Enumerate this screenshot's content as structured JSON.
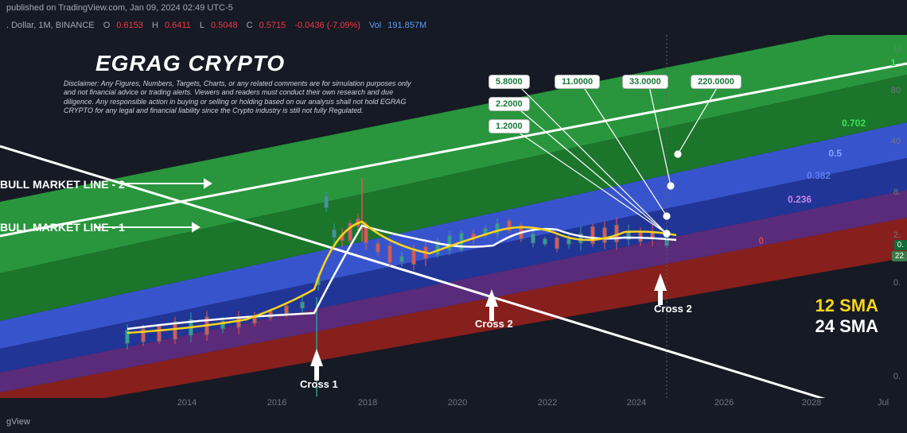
{
  "header": {
    "publish_info": "published on TradingView.com, Jan 09, 2024 02:49 UTC-5",
    "ticker_line_prefix": ". Dollar, 1M, BINANCE",
    "O": "0.6153",
    "H": "0.6411",
    "L": "0.5048",
    "C": "0.5715",
    "change": "-0.0436 (-7.09%)",
    "vol_label": "Vol",
    "vol": "191.857M",
    "bottom": "gView"
  },
  "title": "EGRAG CRYPTO",
  "disclaimer": "Disclaimer: Any Figures, Numbers, Targets, Charts, or any related comments are for simulation purposes only and not financial advice or trading alerts. Viewers and readers must conduct their own research and due diligence. Any responsible action in buying or selling or holding based on our analysis shall not hold EGRAG CRYPTO for any legal and financial liability since the Crypto industry is still not fully Regulated.",
  "line_labels": {
    "bml2": "BULL MARKET LINE - 2",
    "bml1": "BULL MARKET LINE - 1"
  },
  "price_boxes": [
    "5.8000",
    "2.2000",
    "1.2000",
    "11.0000",
    "33.0000",
    "220.0000"
  ],
  "crosses": [
    "Cross 1",
    "Cross 2",
    "Cross 2"
  ],
  "sma": {
    "sma12": "12 SMA",
    "sma24": "24 SMA"
  },
  "fib_levels": [
    {
      "label": "1",
      "color": "#1fa83c"
    },
    {
      "label": "0.702",
      "color": "#1fa83c"
    },
    {
      "label": "0.5",
      "color": "#1f4cc7"
    },
    {
      "label": "0.382",
      "color": "#1f4cc7"
    },
    {
      "label": "0.236",
      "color": "#a344c7"
    },
    {
      "label": "0",
      "color": "#b8231e"
    }
  ],
  "right_axis": [
    "U",
    "80",
    "40",
    "8.",
    "2.",
    "0.",
    "0."
  ],
  "price_tag_top": "0.",
  "price_tag_bot": "22",
  "x_axis": [
    "2014",
    "2016",
    "2018",
    "2020",
    "2022",
    "2024",
    "2026",
    "2028",
    "Jul"
  ],
  "chart": {
    "bg": "#161a25",
    "band_colors": {
      "outer": "#228a2f",
      "inner_green": "#1ea83a",
      "blue_light": "#3956d6",
      "blue_dark": "#2237a0",
      "purple": "#5e2a80",
      "red": "#8c1f1a"
    },
    "sma12_color": "#f7d51d",
    "sma24_color": "#ffffff",
    "line_white": "#ffffff",
    "candle_up": "#26a69a",
    "candle_down": "#ef5350",
    "candle_wick": "#61707f"
  }
}
